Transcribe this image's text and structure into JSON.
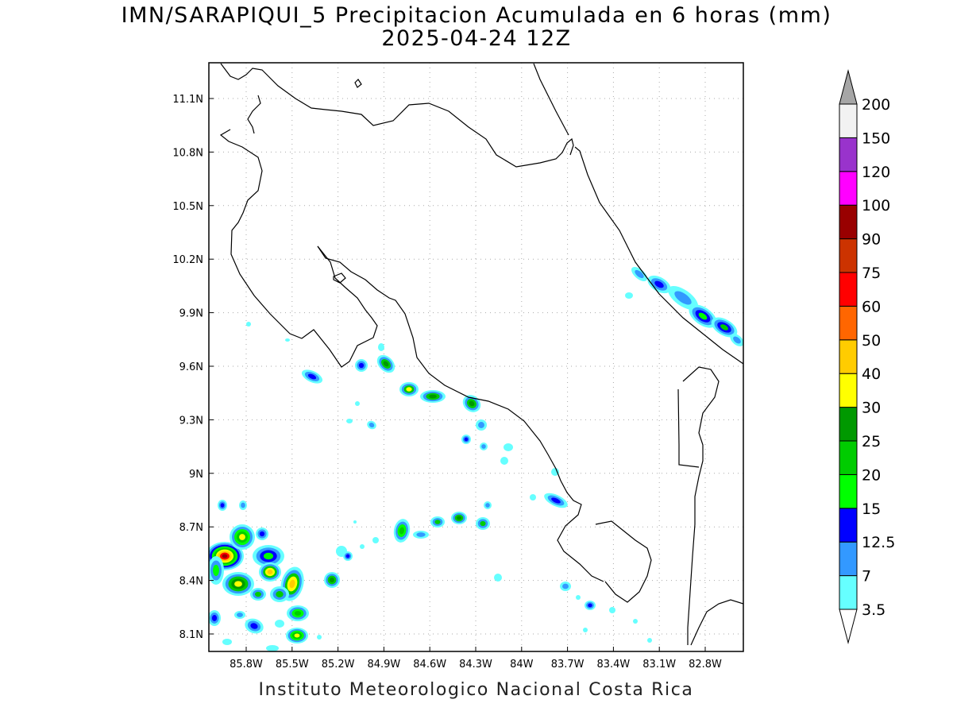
{
  "title": {
    "line1": "IMN/SARAPIQUI_5 Precipitacion Acumulada en 6 horas (mm)",
    "line2": "2025-04-24 12Z"
  },
  "footer": "Instituto Meteorologico Nacional Costa Rica",
  "axes": {
    "lat_ticks": [
      "11.1N",
      "10.8N",
      "10.5N",
      "10.2N",
      "9.9N",
      "9.6N",
      "9.3N",
      "9N",
      "8.7N",
      "8.4N",
      "8.1N"
    ],
    "lon_ticks": [
      "85.8W",
      "85.5W",
      "85.2W",
      "84.9W",
      "84.6W",
      "84.3W",
      "84W",
      "83.7W",
      "83.4W",
      "83.1W",
      "82.8W"
    ]
  },
  "colorbar": {
    "levels": [
      "3.5",
      "7",
      "12.5",
      "15",
      "20",
      "25",
      "30",
      "40",
      "50",
      "60",
      "75",
      "90",
      "100",
      "120",
      "150",
      "200"
    ],
    "colors": [
      "#66ffff",
      "#3399ff",
      "#0000ff",
      "#00ff00",
      "#00cc00",
      "#009900",
      "#ffff00",
      "#ffcc00",
      "#ff6600",
      "#ff0000",
      "#cc3300",
      "#990000",
      "#ff00ff",
      "#9933cc",
      "#f2f2f2",
      "#a6a6a6"
    ]
  }
}
